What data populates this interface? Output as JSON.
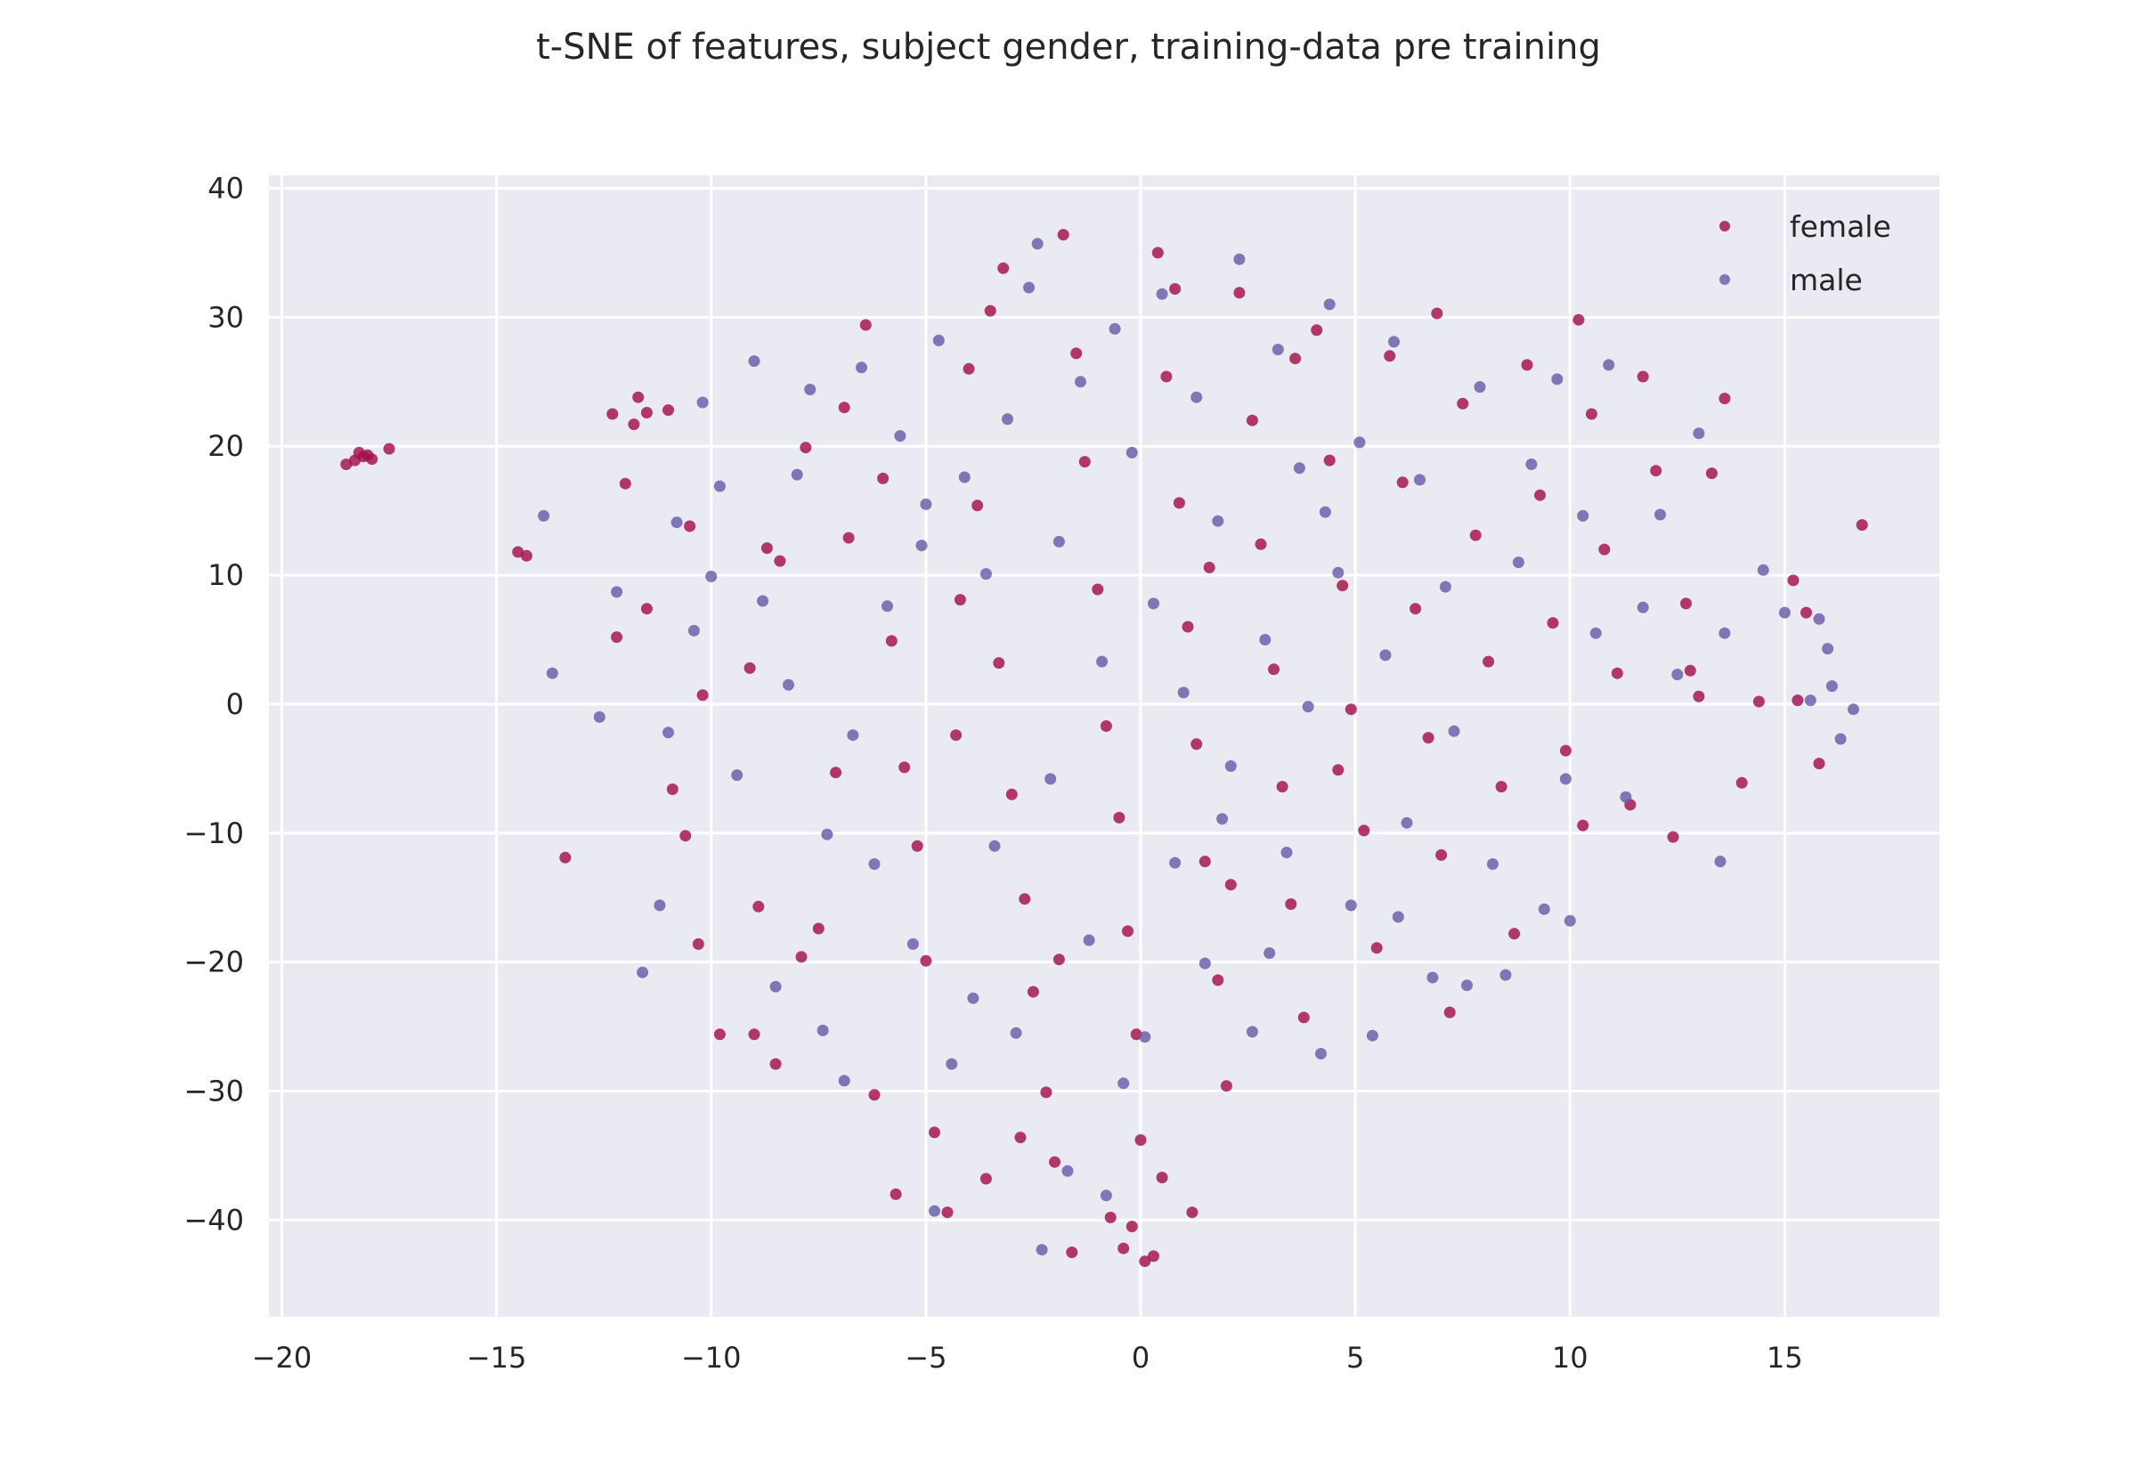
{
  "chart_data": {
    "type": "scatter",
    "title": "t-SNE of features, subject gender, training-data pre training",
    "xlabel": "",
    "ylabel": "",
    "xlim": [
      -20.3,
      18.6
    ],
    "ylim": [
      -47.5,
      41
    ],
    "xticks": [
      -20,
      -15,
      -10,
      -5,
      0,
      5,
      10,
      15
    ],
    "yticks": [
      -40,
      -30,
      -20,
      -10,
      0,
      10,
      20,
      30,
      40
    ],
    "xtick_labels": [
      "−20",
      "−15",
      "−10",
      "−5",
      "0",
      "5",
      "10",
      "15"
    ],
    "ytick_labels": [
      "−40",
      "−30",
      "−20",
      "−10",
      "0",
      "10",
      "20",
      "30",
      "40"
    ],
    "grid": true,
    "background": "#eaeaf2",
    "legend_position": "top-right",
    "series": [
      {
        "name": "female",
        "color": "#a50f4b",
        "points": [
          [
            -18.5,
            18.6
          ],
          [
            -18.3,
            18.9
          ],
          [
            -18.1,
            19.2
          ],
          [
            -17.9,
            19.0
          ],
          [
            -17.5,
            19.8
          ],
          [
            -18.2,
            19.5
          ],
          [
            -18.0,
            19.3
          ],
          [
            -14.5,
            11.8
          ],
          [
            -14.3,
            11.5
          ],
          [
            -13.4,
            -11.9
          ],
          [
            -12.3,
            22.5
          ],
          [
            -12.0,
            17.1
          ],
          [
            -11.7,
            23.8
          ],
          [
            -11.5,
            22.6
          ],
          [
            -11.0,
            22.8
          ],
          [
            -11.8,
            21.7
          ],
          [
            -12.2,
            5.2
          ],
          [
            -10.5,
            13.8
          ],
          [
            -10.2,
            0.7
          ],
          [
            -10.6,
            -10.2
          ],
          [
            -10.3,
            -18.6
          ],
          [
            -9.8,
            -25.6
          ],
          [
            -9.0,
            -25.6
          ],
          [
            -8.5,
            -27.9
          ],
          [
            -9.1,
            2.8
          ],
          [
            -8.7,
            12.1
          ],
          [
            -8.4,
            11.1
          ],
          [
            -7.8,
            19.9
          ],
          [
            -7.5,
            -17.4
          ],
          [
            -7.1,
            -5.3
          ],
          [
            -6.8,
            12.9
          ],
          [
            -6.4,
            29.4
          ],
          [
            -6.0,
            17.5
          ],
          [
            -5.8,
            4.9
          ],
          [
            -5.5,
            -4.9
          ],
          [
            -5.2,
            -11.0
          ],
          [
            -5.0,
            -19.9
          ],
          [
            -4.8,
            -33.2
          ],
          [
            -4.5,
            -39.4
          ],
          [
            -5.7,
            -38.0
          ],
          [
            -4.2,
            8.1
          ],
          [
            -4.0,
            26.0
          ],
          [
            -3.8,
            15.4
          ],
          [
            -3.5,
            30.5
          ],
          [
            -3.3,
            3.2
          ],
          [
            -3.0,
            -7.0
          ],
          [
            -2.7,
            -15.1
          ],
          [
            -2.5,
            -22.3
          ],
          [
            -2.2,
            -30.1
          ],
          [
            -2.0,
            -35.5
          ],
          [
            -1.8,
            36.4
          ],
          [
            -1.5,
            27.2
          ],
          [
            -1.3,
            18.8
          ],
          [
            -1.0,
            8.9
          ],
          [
            -0.8,
            -1.7
          ],
          [
            -0.5,
            -8.8
          ],
          [
            -0.3,
            -17.6
          ],
          [
            -0.1,
            -25.6
          ],
          [
            0.0,
            -33.8
          ],
          [
            -0.2,
            -40.5
          ],
          [
            -0.4,
            -42.2
          ],
          [
            0.3,
            -42.8
          ],
          [
            0.1,
            -43.2
          ],
          [
            0.4,
            35.0
          ],
          [
            0.6,
            25.4
          ],
          [
            0.9,
            15.6
          ],
          [
            1.1,
            6.0
          ],
          [
            1.3,
            -3.1
          ],
          [
            1.5,
            -12.2
          ],
          [
            1.8,
            -21.4
          ],
          [
            2.0,
            -29.6
          ],
          [
            2.3,
            31.9
          ],
          [
            2.6,
            22.0
          ],
          [
            2.8,
            12.4
          ],
          [
            3.1,
            2.7
          ],
          [
            3.3,
            -6.4
          ],
          [
            3.5,
            -15.5
          ],
          [
            3.8,
            -24.3
          ],
          [
            4.1,
            29.0
          ],
          [
            4.4,
            18.9
          ],
          [
            4.7,
            9.2
          ],
          [
            4.9,
            -0.4
          ],
          [
            5.2,
            -9.8
          ],
          [
            5.5,
            -18.9
          ],
          [
            5.8,
            27.0
          ],
          [
            6.1,
            17.2
          ],
          [
            6.4,
            7.4
          ],
          [
            6.7,
            -2.6
          ],
          [
            7.0,
            -11.7
          ],
          [
            7.2,
            -23.9
          ],
          [
            7.5,
            23.3
          ],
          [
            7.8,
            13.1
          ],
          [
            8.1,
            3.3
          ],
          [
            8.4,
            -6.4
          ],
          [
            8.7,
            -17.8
          ],
          [
            9.0,
            26.3
          ],
          [
            9.3,
            16.2
          ],
          [
            9.6,
            6.3
          ],
          [
            9.9,
            -3.6
          ],
          [
            10.2,
            29.8
          ],
          [
            10.5,
            22.5
          ],
          [
            10.8,
            12.0
          ],
          [
            11.1,
            2.4
          ],
          [
            11.4,
            -7.8
          ],
          [
            11.7,
            25.4
          ],
          [
            12.0,
            18.1
          ],
          [
            12.4,
            -10.3
          ],
          [
            12.7,
            7.8
          ],
          [
            13.0,
            0.6
          ],
          [
            13.3,
            17.9
          ],
          [
            13.6,
            23.7
          ],
          [
            14.0,
            -6.1
          ],
          [
            14.4,
            0.2
          ],
          [
            15.2,
            9.6
          ],
          [
            15.5,
            7.1
          ],
          [
            15.8,
            -4.6
          ],
          [
            16.8,
            13.9
          ],
          [
            15.3,
            0.3
          ],
          [
            10.3,
            -9.4
          ],
          [
            12.8,
            2.6
          ],
          [
            -0.7,
            -39.8
          ],
          [
            0.5,
            -36.7
          ],
          [
            1.2,
            -39.4
          ],
          [
            -1.6,
            -42.5
          ],
          [
            -3.6,
            -36.8
          ],
          [
            -2.8,
            -33.6
          ],
          [
            -6.2,
            -30.3
          ],
          [
            -7.9,
            -19.6
          ],
          [
            -8.9,
            -15.7
          ],
          [
            -10.9,
            -6.6
          ],
          [
            -11.5,
            7.4
          ],
          [
            -6.9,
            23.0
          ],
          [
            -3.2,
            33.8
          ],
          [
            0.8,
            32.2
          ],
          [
            3.6,
            26.8
          ],
          [
            6.9,
            30.3
          ],
          [
            2.1,
            -14.0
          ],
          [
            -1.9,
            -19.8
          ],
          [
            4.6,
            -5.1
          ],
          [
            -4.3,
            -2.4
          ],
          [
            1.6,
            10.6
          ]
        ]
      },
      {
        "name": "male",
        "color": "#6a5ba8",
        "points": [
          [
            -13.9,
            14.6
          ],
          [
            -13.7,
            2.4
          ],
          [
            -12.6,
            -1.0
          ],
          [
            -12.2,
            8.7
          ],
          [
            -11.6,
            -20.8
          ],
          [
            -11.2,
            -15.6
          ],
          [
            -11.0,
            -2.2
          ],
          [
            -10.8,
            14.1
          ],
          [
            -10.4,
            5.7
          ],
          [
            -10.2,
            23.4
          ],
          [
            -9.8,
            16.9
          ],
          [
            -9.4,
            -5.5
          ],
          [
            -9.0,
            26.6
          ],
          [
            -8.8,
            8.0
          ],
          [
            -8.5,
            -21.9
          ],
          [
            -8.2,
            1.5
          ],
          [
            -7.7,
            24.4
          ],
          [
            -7.3,
            -10.1
          ],
          [
            -6.9,
            -29.2
          ],
          [
            -6.7,
            -2.4
          ],
          [
            -6.5,
            26.1
          ],
          [
            -6.2,
            -12.4
          ],
          [
            -5.9,
            7.6
          ],
          [
            -5.6,
            20.8
          ],
          [
            -5.3,
            -18.6
          ],
          [
            -5.1,
            12.3
          ],
          [
            -4.8,
            -39.3
          ],
          [
            -4.7,
            28.2
          ],
          [
            -4.4,
            -27.9
          ],
          [
            -4.1,
            17.6
          ],
          [
            -3.9,
            -22.8
          ],
          [
            -3.6,
            10.1
          ],
          [
            -3.4,
            -11.0
          ],
          [
            -3.1,
            22.1
          ],
          [
            -2.9,
            -25.5
          ],
          [
            -2.6,
            32.3
          ],
          [
            -2.4,
            35.7
          ],
          [
            -2.1,
            -5.8
          ],
          [
            -1.9,
            12.6
          ],
          [
            -1.7,
            -36.2
          ],
          [
            -1.4,
            25.0
          ],
          [
            -1.2,
            -18.3
          ],
          [
            -0.9,
            3.3
          ],
          [
            -0.6,
            29.1
          ],
          [
            -0.4,
            -29.4
          ],
          [
            -0.2,
            19.5
          ],
          [
            0.1,
            -25.8
          ],
          [
            0.3,
            7.8
          ],
          [
            0.5,
            31.8
          ],
          [
            0.8,
            -12.3
          ],
          [
            1.0,
            0.9
          ],
          [
            1.3,
            23.8
          ],
          [
            1.5,
            -20.1
          ],
          [
            1.8,
            14.2
          ],
          [
            2.1,
            -4.8
          ],
          [
            2.3,
            34.5
          ],
          [
            2.6,
            -25.4
          ],
          [
            2.9,
            5.0
          ],
          [
            3.2,
            27.5
          ],
          [
            3.4,
            -11.5
          ],
          [
            3.7,
            18.3
          ],
          [
            3.9,
            -0.2
          ],
          [
            4.2,
            -27.1
          ],
          [
            4.4,
            31.0
          ],
          [
            4.6,
            10.2
          ],
          [
            4.9,
            -15.6
          ],
          [
            5.1,
            20.3
          ],
          [
            5.4,
            -25.7
          ],
          [
            5.7,
            3.8
          ],
          [
            5.9,
            28.1
          ],
          [
            6.2,
            -9.2
          ],
          [
            6.5,
            17.4
          ],
          [
            6.8,
            -21.2
          ],
          [
            7.1,
            9.1
          ],
          [
            7.3,
            -2.1
          ],
          [
            7.6,
            -21.8
          ],
          [
            7.9,
            24.6
          ],
          [
            8.2,
            -12.4
          ],
          [
            8.5,
            -21.0
          ],
          [
            8.8,
            11.0
          ],
          [
            9.1,
            18.6
          ],
          [
            9.4,
            -15.9
          ],
          [
            9.7,
            25.2
          ],
          [
            10.0,
            -16.8
          ],
          [
            10.3,
            14.6
          ],
          [
            10.6,
            5.5
          ],
          [
            10.9,
            26.3
          ],
          [
            11.3,
            -7.2
          ],
          [
            11.7,
            7.5
          ],
          [
            12.1,
            14.7
          ],
          [
            12.5,
            2.3
          ],
          [
            13.0,
            21.0
          ],
          [
            13.5,
            -12.2
          ],
          [
            13.6,
            5.5
          ],
          [
            14.5,
            10.4
          ],
          [
            15.0,
            7.1
          ],
          [
            15.6,
            0.3
          ],
          [
            15.8,
            6.6
          ],
          [
            16.0,
            4.3
          ],
          [
            16.3,
            -2.7
          ],
          [
            16.6,
            -0.4
          ],
          [
            16.1,
            1.4
          ],
          [
            -10.0,
            9.9
          ],
          [
            -8.0,
            17.8
          ],
          [
            -2.3,
            -42.3
          ],
          [
            -0.8,
            -38.1
          ],
          [
            1.9,
            -8.9
          ],
          [
            -5.0,
            15.5
          ],
          [
            3.0,
            -19.3
          ],
          [
            6.0,
            -16.5
          ],
          [
            -7.4,
            -25.3
          ],
          [
            9.9,
            -5.8
          ],
          [
            4.3,
            14.9
          ]
        ]
      }
    ]
  }
}
